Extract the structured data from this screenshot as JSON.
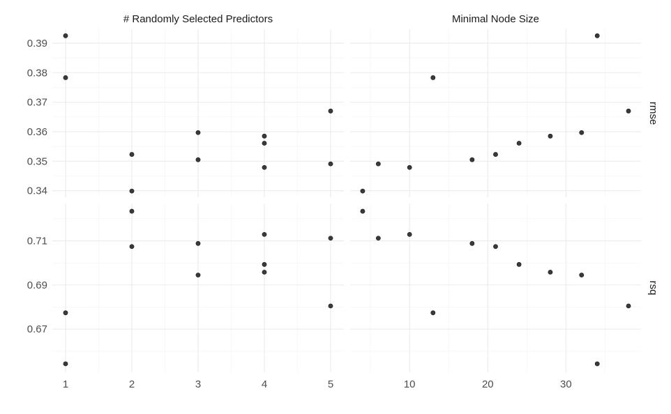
{
  "chart_data": {
    "type": "scatter",
    "facets": {
      "columns": [
        "# Randomly Selected Predictors",
        "Minimal Node Size"
      ],
      "rows": [
        "rmse",
        "rsq"
      ]
    },
    "x_axes": [
      {
        "ticks": [
          1,
          2,
          3,
          4,
          5
        ],
        "tick_labels": [
          "1",
          "2",
          "3",
          "4",
          "5"
        ],
        "lim": [
          0.8,
          5.2
        ]
      },
      {
        "ticks": [
          10,
          20,
          30
        ],
        "tick_labels": [
          "10",
          "20",
          "30"
        ],
        "lim": [
          2.4,
          39.6
        ]
      }
    ],
    "y_axes": [
      {
        "ticks": [
          0.34,
          0.35,
          0.36,
          0.37,
          0.38,
          0.39
        ],
        "tick_labels": [
          "0.34",
          "0.35",
          "0.36",
          "0.37",
          "0.38",
          "0.39"
        ],
        "lim": [
          0.3378,
          0.3947
        ]
      },
      {
        "ticks": [
          0.67,
          0.69,
          0.71
        ],
        "tick_labels": [
          "0.67",
          "0.69",
          "0.71"
        ],
        "lim": [
          0.6505,
          0.7269
        ]
      }
    ],
    "grid": true,
    "panels": [
      {
        "col": 0,
        "row": 0,
        "points": [
          {
            "x": 1,
            "y": 0.3925
          },
          {
            "x": 1,
            "y": 0.3783
          },
          {
            "x": 2,
            "y": 0.3523
          },
          {
            "x": 2,
            "y": 0.3399
          },
          {
            "x": 3,
            "y": 0.3597
          },
          {
            "x": 3,
            "y": 0.3505
          },
          {
            "x": 4,
            "y": 0.3585
          },
          {
            "x": 4,
            "y": 0.3561
          },
          {
            "x": 4,
            "y": 0.3479
          },
          {
            "x": 5,
            "y": 0.367
          },
          {
            "x": 5,
            "y": 0.3491
          }
        ]
      },
      {
        "col": 1,
        "row": 0,
        "points": [
          {
            "x": 4,
            "y": 0.3399
          },
          {
            "x": 6,
            "y": 0.3491
          },
          {
            "x": 10,
            "y": 0.3479
          },
          {
            "x": 13,
            "y": 0.3783
          },
          {
            "x": 18,
            "y": 0.3505
          },
          {
            "x": 21,
            "y": 0.3523
          },
          {
            "x": 24,
            "y": 0.3561
          },
          {
            "x": 28,
            "y": 0.3585
          },
          {
            "x": 32,
            "y": 0.3597
          },
          {
            "x": 34,
            "y": 0.3925
          },
          {
            "x": 38,
            "y": 0.367
          }
        ]
      },
      {
        "col": 0,
        "row": 1,
        "points": [
          {
            "x": 1,
            "y": 0.6774
          },
          {
            "x": 1,
            "y": 0.6543
          },
          {
            "x": 2,
            "y": 0.7234
          },
          {
            "x": 2,
            "y": 0.7074
          },
          {
            "x": 3,
            "y": 0.7088
          },
          {
            "x": 3,
            "y": 0.6945
          },
          {
            "x": 4,
            "y": 0.7129
          },
          {
            "x": 4,
            "y": 0.6993
          },
          {
            "x": 4,
            "y": 0.6958
          },
          {
            "x": 5,
            "y": 0.7112
          },
          {
            "x": 5,
            "y": 0.6805
          }
        ]
      },
      {
        "col": 1,
        "row": 1,
        "points": [
          {
            "x": 4,
            "y": 0.7234
          },
          {
            "x": 6,
            "y": 0.7112
          },
          {
            "x": 10,
            "y": 0.7129
          },
          {
            "x": 13,
            "y": 0.6774
          },
          {
            "x": 18,
            "y": 0.7088
          },
          {
            "x": 21,
            "y": 0.7074
          },
          {
            "x": 24,
            "y": 0.6993
          },
          {
            "x": 28,
            "y": 0.6958
          },
          {
            "x": 32,
            "y": 0.6945
          },
          {
            "x": 34,
            "y": 0.6543
          },
          {
            "x": 38,
            "y": 0.6805
          }
        ]
      }
    ],
    "point_color": "#333333"
  }
}
